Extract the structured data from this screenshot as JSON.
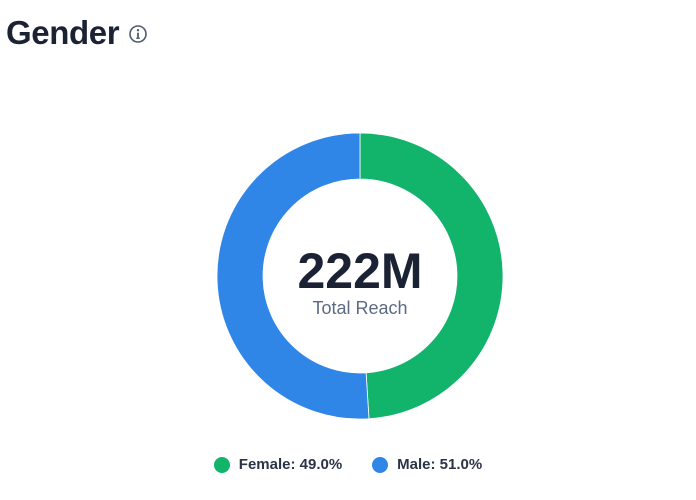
{
  "header": {
    "title": "Gender",
    "info_icon": "info-circle-icon"
  },
  "chart_data": {
    "type": "pie",
    "variant": "donut",
    "center_value": "222M",
    "center_label": "Total Reach",
    "slices": [
      {
        "name": "Female",
        "value": 49.0,
        "label": "Female: 49.0%",
        "color": "#12b36b"
      },
      {
        "name": "Male",
        "value": 51.0,
        "label": "Male: 51.0%",
        "color": "#2f86e6"
      }
    ],
    "start_angle": "top (12 o'clock), clockwise",
    "legend_placement": "bottom"
  }
}
